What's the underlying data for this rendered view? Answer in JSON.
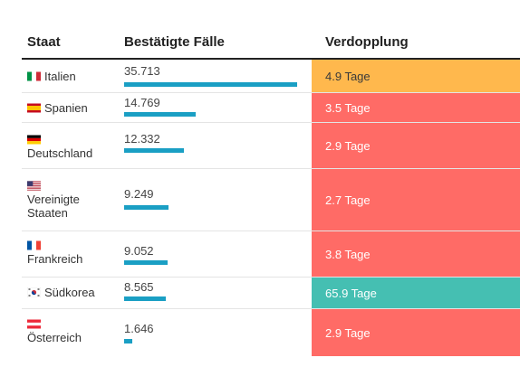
{
  "table": {
    "headers": {
      "country": "Staat",
      "cases": "Bestätigte Fälle",
      "doubling": "Verdopplung"
    },
    "max_cases": 35713,
    "rows": [
      {
        "country": "Italien",
        "flag": "italy-flag-icon",
        "cases": "35.713",
        "cases_value": 35713,
        "doubling": "4.9 Tage",
        "color": "#ffb84d"
      },
      {
        "country": "Spanien",
        "flag": "spain-flag-icon",
        "cases": "14.769",
        "cases_value": 14769,
        "doubling": "3.5 Tage",
        "color": "#ff6b66"
      },
      {
        "country": "Deutschland",
        "flag": "germany-flag-icon",
        "cases": "12.332",
        "cases_value": 12332,
        "doubling": "2.9 Tage",
        "color": "#ff6b66"
      },
      {
        "country": "Vereinigte Staaten",
        "flag": "usa-flag-icon",
        "cases": "9.249",
        "cases_value": 9249,
        "doubling": "2.7 Tage",
        "color": "#ff6b66"
      },
      {
        "country": "Frankreich",
        "flag": "france-flag-icon",
        "cases": "9.052",
        "cases_value": 9052,
        "doubling": "3.8 Tage",
        "color": "#ff6b66"
      },
      {
        "country": "Südkorea",
        "flag": "south-korea-flag-icon",
        "cases": "8.565",
        "cases_value": 8565,
        "doubling": "65.9 Tage",
        "color": "#45bfb2"
      },
      {
        "country": "Österreich",
        "flag": "austria-flag-icon",
        "cases": "1.646",
        "cases_value": 1646,
        "doubling": "2.9 Tage",
        "color": "#ff6b66"
      }
    ]
  }
}
